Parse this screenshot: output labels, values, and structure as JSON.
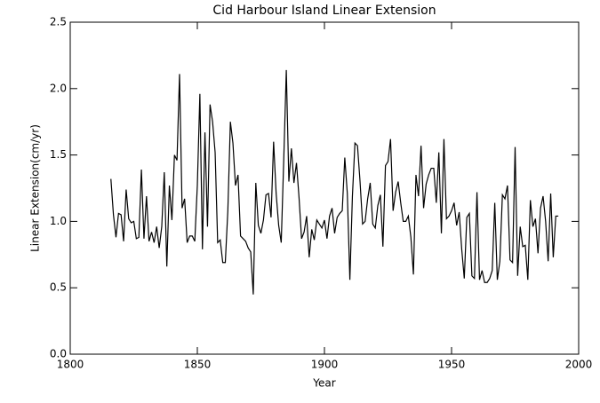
{
  "chart_data": {
    "type": "line",
    "title": "Cid Harbour Island Linear Extension",
    "xlabel": "Year",
    "ylabel": "Linear Extension(cm/yr)",
    "color": "#000000",
    "xlim": [
      1800,
      2000
    ],
    "xticks": [
      1800,
      1850,
      1900,
      1950,
      2000
    ],
    "ylim": [
      0,
      2.5
    ],
    "yticks": [
      {
        "value": 0,
        "label": "0.0"
      },
      {
        "value": 0.5,
        "label": "0.5"
      },
      {
        "value": 1,
        "label": "1.0"
      },
      {
        "value": 1.5,
        "label": "1.5"
      },
      {
        "value": 2,
        "label": "2.0"
      },
      {
        "value": 2.5,
        "label": "2.5"
      }
    ],
    "x": [
      1816,
      1817,
      1818,
      1819,
      1820,
      1821,
      1822,
      1823,
      1824,
      1825,
      1826,
      1827,
      1828,
      1829,
      1830,
      1831,
      1832,
      1833,
      1834,
      1835,
      1836,
      1837,
      1838,
      1839,
      1840,
      1841,
      1842,
      1843,
      1844,
      1845,
      1846,
      1847,
      1848,
      1849,
      1850,
      1851,
      1852,
      1853,
      1854,
      1855,
      1856,
      1857,
      1858,
      1859,
      1860,
      1861,
      1862,
      1863,
      1864,
      1865,
      1866,
      1867,
      1868,
      1869,
      1870,
      1871,
      1872,
      1873,
      1874,
      1875,
      1876,
      1877,
      1878,
      1879,
      1880,
      1881,
      1882,
      1883,
      1884,
      1885,
      1886,
      1887,
      1888,
      1889,
      1890,
      1891,
      1892,
      1893,
      1894,
      1895,
      1896,
      1897,
      1898,
      1899,
      1900,
      1901,
      1902,
      1903,
      1904,
      1905,
      1906,
      1907,
      1908,
      1909,
      1910,
      1911,
      1912,
      1913,
      1914,
      1915,
      1916,
      1917,
      1918,
      1919,
      1920,
      1921,
      1922,
      1923,
      1924,
      1925,
      1926,
      1927,
      1928,
      1929,
      1930,
      1931,
      1932,
      1933,
      1934,
      1935,
      1936,
      1937,
      1938,
      1939,
      1940,
      1941,
      1942,
      1943,
      1944,
      1945,
      1946,
      1947,
      1948,
      1949,
      1950,
      1951,
      1952,
      1953,
      1954,
      1955,
      1956,
      1957,
      1958,
      1959,
      1960,
      1961,
      1962,
      1963,
      1964,
      1965,
      1966,
      1967,
      1968,
      1969,
      1970,
      1971,
      1972,
      1973,
      1974,
      1975,
      1976,
      1977,
      1978,
      1979,
      1980,
      1981,
      1982,
      1983,
      1984,
      1985,
      1986,
      1987,
      1988,
      1989,
      1990,
      1991,
      1992
    ],
    "values": [
      1.32,
      1.05,
      0.88,
      1.06,
      1.05,
      0.85,
      1.24,
      1.02,
      0.99,
      1.0,
      0.87,
      0.88,
      1.39,
      0.87,
      1.19,
      0.85,
      0.92,
      0.84,
      0.96,
      0.8,
      0.96,
      1.37,
      0.66,
      1.27,
      1.01,
      1.5,
      1.46,
      2.11,
      1.1,
      1.17,
      0.84,
      0.89,
      0.89,
      0.85,
      1.27,
      1.96,
      0.79,
      1.67,
      0.96,
      1.88,
      1.75,
      1.52,
      0.84,
      0.86,
      0.69,
      0.69,
      1.08,
      1.75,
      1.59,
      1.27,
      1.35,
      0.89,
      0.87,
      0.85,
      0.8,
      0.77,
      0.45,
      1.29,
      0.97,
      0.91,
      1.01,
      1.2,
      1.21,
      1.03,
      1.6,
      1.21,
      0.97,
      0.84,
      1.47,
      2.14,
      1.3,
      1.55,
      1.29,
      1.44,
      1.18,
      0.87,
      0.92,
      1.04,
      0.73,
      0.94,
      0.86,
      1.01,
      0.98,
      0.95,
      1.01,
      0.87,
      1.04,
      1.1,
      0.91,
      1.03,
      1.06,
      1.08,
      1.48,
      1.21,
      0.56,
      1.19,
      1.59,
      1.57,
      1.3,
      0.98,
      1.0,
      1.17,
      1.29,
      0.98,
      0.95,
      1.12,
      1.2,
      0.81,
      1.42,
      1.45,
      1.62,
      1.08,
      1.22,
      1.3,
      1.14,
      1.0,
      1.0,
      1.04,
      0.88,
      0.6,
      1.35,
      1.19,
      1.57,
      1.1,
      1.28,
      1.35,
      1.4,
      1.4,
      1.14,
      1.52,
      0.91,
      1.62,
      1.02,
      1.04,
      1.08,
      1.14,
      0.97,
      1.07,
      0.79,
      0.57,
      1.03,
      1.06,
      0.59,
      0.57,
      1.22,
      0.56,
      0.63,
      0.54,
      0.54,
      0.57,
      0.63,
      1.14,
      0.56,
      0.7,
      1.2,
      1.17,
      1.27,
      0.71,
      0.69,
      1.56,
      0.59,
      0.96,
      0.81,
      0.82,
      0.56,
      1.16,
      0.96,
      1.02,
      0.76,
      1.1,
      1.19,
      1.0,
      0.7,
      1.21,
      0.73,
      1.04,
      1.04
    ]
  }
}
